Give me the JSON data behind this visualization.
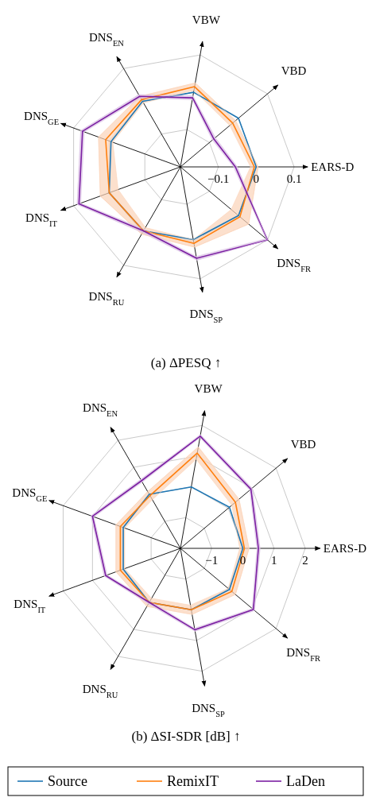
{
  "chart_data": [
    {
      "type": "radar",
      "title": "(a) ΔPESQ ↑",
      "categories": [
        "VBW",
        "VBD",
        "EARS-D",
        "DNS$_{FR}$",
        "DNS$_{SP}$",
        "DNS$_{RU}$",
        "DNS$_{IT}$",
        "DNS$_{GE}$",
        "DNS$_{EN}$"
      ],
      "ylim": [
        -0.2,
        0.1
      ],
      "yticks": [
        {
          "value": -0.1,
          "label": "−0.1"
        },
        0,
        0.1
      ],
      "grid": true,
      "series": [
        {
          "color": "#1f77b4",
          "values": [
            0,
            0,
            0,
            0,
            -0.005,
            -0.005,
            0,
            -0.005,
            0
          ]
        },
        {
          "color": "#ff7f0e",
          "values": [
            0.015,
            -0.02,
            -0.005,
            0.005,
            0.005,
            -0.005,
            0,
            0.01,
            0.005
          ]
        },
        {
          "color": "#fbd3b8",
          "values": [
            0.025,
            -0.01,
            0.005,
            0.035,
            0.015,
            0.005,
            0.025,
            0.03,
            0.015
          ]
        },
        {
          "color": "#fbd3b8",
          "values": [
            0.005,
            -0.03,
            -0.015,
            -0.025,
            -0.005,
            -0.015,
            -0.025,
            -0.01,
            -0.005
          ]
        },
        {
          "color": "#7b1fa2",
          "values": [
            -0.015,
            -0.085,
            -0.055,
            0.1,
            0.045,
            -0.005,
            0.085,
            0.075,
            0.015
          ]
        },
        {
          "color": "#dcc3e6",
          "values": [
            -0.01,
            -0.08,
            -0.05,
            0.1,
            0.05,
            0,
            0.09,
            0.08,
            0.02
          ]
        },
        {
          "color": "#dcc3e6",
          "values": [
            -0.02,
            -0.09,
            -0.06,
            0.095,
            0.04,
            -0.01,
            0.08,
            0.07,
            0.01
          ]
        }
      ]
    },
    {
      "type": "radar",
      "title": "(b) ΔSI-SDR [dB] ↑",
      "categories": [
        "VBW",
        "VBD",
        "EARS-D",
        "DNS$_{FR}$",
        "DNS$_{SP}$",
        "DNS$_{RU}$",
        "DNS$_{IT}$",
        "DNS$_{GE}$",
        "DNS$_{EN}$"
      ],
      "ylim": [
        -2,
        2
      ],
      "yticks": [
        {
          "value": -1,
          "label": "−1"
        },
        0,
        1,
        2
      ],
      "grid": true,
      "legend": "bottom",
      "series": [
        {
          "name": "Source",
          "color": "#1f77b4",
          "values": [
            0,
            0.05,
            0,
            0.05,
            0,
            0,
            -0.05,
            -0.05,
            0
          ]
        },
        {
          "name": "RemixIT",
          "color": "#ff7f0e",
          "values": [
            1.1,
            0.3,
            0.05,
            0.15,
            0,
            0,
            0.05,
            0.05,
            -0.05
          ]
        },
        {
          "color": "#fbd3b8",
          "values": [
            1.3,
            0.45,
            0.2,
            0.3,
            0.15,
            0.15,
            0.2,
            0.2,
            0.1
          ]
        },
        {
          "color": "#fbd3b8",
          "values": [
            0.9,
            0.15,
            -0.1,
            0,
            -0.15,
            -0.15,
            -0.1,
            -0.1,
            -0.2
          ]
        },
        {
          "name": "LaDen",
          "color": "#7b1fa2",
          "values": [
            1.65,
            0.95,
            0.5,
            1.05,
            0.65,
            0,
            0.55,
            1.0,
            0.5
          ]
        },
        {
          "color": "#dcc3e6",
          "values": [
            1.7,
            1.0,
            0.55,
            1.1,
            0.7,
            0.05,
            0.6,
            1.05,
            0.55
          ]
        },
        {
          "color": "#dcc3e6",
          "values": [
            1.6,
            0.9,
            0.45,
            1.0,
            0.6,
            -0.05,
            0.5,
            0.95,
            0.45
          ]
        }
      ]
    }
  ]
}
